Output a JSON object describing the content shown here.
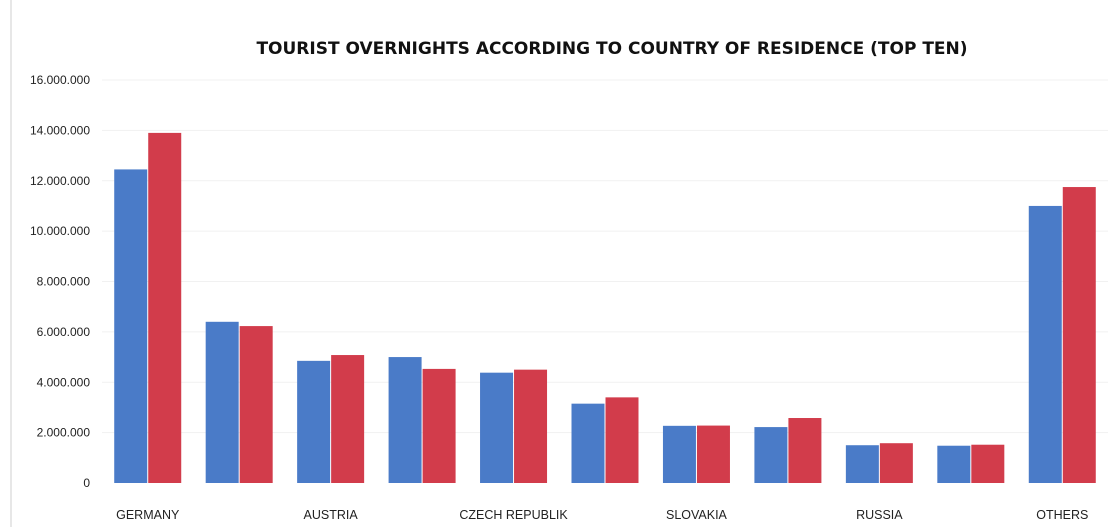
{
  "chart_data": {
    "type": "bar",
    "title": "TOURIST OVERNIGHTS ACCORDING TO COUNTRY OF RESIDENCE (TOP TEN)",
    "xlabel": "",
    "ylabel": "",
    "ylim": [
      0,
      16000000
    ],
    "y_ticks": [
      "0",
      "2.000.000",
      "4.000.000",
      "6.000.000",
      "8.000.000",
      "10.000.000",
      "12.000.000",
      "14.000.000",
      "16.000.000"
    ],
    "categories": [
      "GERMANY",
      "",
      "AUSTRIA",
      "",
      "CZECH REPUBLIK",
      "",
      "SLOVAKIA",
      "",
      "RUSSIA",
      "",
      "OTHERS"
    ],
    "series": [
      {
        "color": "#4a7bc8",
        "values": [
          12450000,
          6400000,
          4850000,
          5000000,
          4380000,
          3150000,
          2270000,
          2220000,
          1500000,
          1480000,
          11000000
        ]
      },
      {
        "color": "#d23c4b",
        "values": [
          13900000,
          6230000,
          5080000,
          4530000,
          4500000,
          3400000,
          2280000,
          2580000,
          1580000,
          1520000,
          11750000
        ]
      }
    ],
    "grid": true,
    "legend": "none"
  }
}
